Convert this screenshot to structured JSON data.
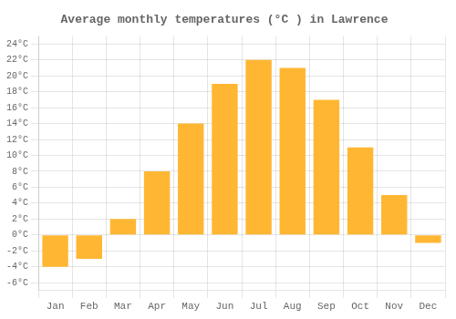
{
  "chart_data": {
    "type": "bar",
    "title": "Average monthly temperatures (°C ) in Lawrence",
    "categories": [
      "Jan",
      "Feb",
      "Mar",
      "Apr",
      "May",
      "Jun",
      "Jul",
      "Aug",
      "Sep",
      "Oct",
      "Nov",
      "Dec"
    ],
    "values": [
      -4,
      -3,
      2,
      8,
      14,
      19,
      22,
      21,
      17,
      11,
      5,
      -1
    ],
    "color": "#FFB733",
    "ylim": [
      -7,
      25
    ],
    "yticks": [
      {
        "value": -6,
        "label": "-6°C"
      },
      {
        "value": -4,
        "label": "-4°C"
      },
      {
        "value": -2,
        "label": "-2°C"
      },
      {
        "value": 0,
        "label": "0°C"
      },
      {
        "value": 2,
        "label": "2°C"
      },
      {
        "value": 4,
        "label": "4°C"
      },
      {
        "value": 6,
        "label": "6°C"
      },
      {
        "value": 8,
        "label": "8°C"
      },
      {
        "value": 10,
        "label": "10°C"
      },
      {
        "value": 12,
        "label": "12°C"
      },
      {
        "value": 14,
        "label": "14°C"
      },
      {
        "value": 16,
        "label": "16°C"
      },
      {
        "value": 18,
        "label": "18°C"
      },
      {
        "value": 20,
        "label": "20°C"
      },
      {
        "value": 22,
        "label": "22°C"
      },
      {
        "value": 24,
        "label": "24°C"
      }
    ],
    "grid": true
  }
}
